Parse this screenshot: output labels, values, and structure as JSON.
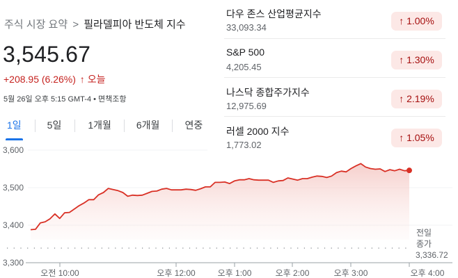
{
  "header": {
    "breadcrumb_parent": "주식 시장 요약",
    "breadcrumb_sep": ">",
    "breadcrumb_current": "필라델피아 반도체 지수",
    "price": "3,545.67",
    "change": "+208.95 (6.26%)",
    "change_arrow": "↑",
    "change_period": "오늘",
    "meta": "5월 26일 오후 5:15 GMT-4 • 면책조항"
  },
  "tabs": [
    {
      "label": "1일",
      "active": true
    },
    {
      "label": "5일",
      "active": false
    },
    {
      "label": "1개월",
      "active": false
    },
    {
      "label": "6개월",
      "active": false
    },
    {
      "label": "연중",
      "active": false
    }
  ],
  "markets": [
    {
      "name": "다우 존스 산업평균지수",
      "value": "33,093.34",
      "change": "↑ 1.00%"
    },
    {
      "name": "S&P 500",
      "value": "4,205.45",
      "change": "↑ 1.30%"
    },
    {
      "name": "나스닥 종합주가지수",
      "value": "12,975.69",
      "change": "↑ 2.19%"
    },
    {
      "name": "러셀 2000 지수",
      "value": "1,773.02",
      "change": "↑ 1.05%"
    }
  ],
  "colors": {
    "line": "#d93025",
    "fill_top": "#f4c7c3",
    "positive_text": "#c5221f",
    "badge_bg": "#fce8e6",
    "badge_text": "#a50e0e",
    "active_tab": "#1a73e8"
  },
  "prev_close": {
    "label_line1": "전일",
    "label_line2": "종가",
    "value": "3,336.72"
  },
  "chart_data": {
    "type": "line",
    "title": "필라델피아 반도체 지수 (1일)",
    "xlabel": "",
    "ylabel": "",
    "ylim": [
      3300,
      3600
    ],
    "yticks": [
      "3,300",
      "3,400",
      "3,500",
      "3,600"
    ],
    "xticks": [
      "오전 10:00",
      "오후 12:00",
      "오후 1:00",
      "오후 2:00",
      "오후 3:00",
      "오후 4:00"
    ],
    "grid": true,
    "reference_line": {
      "label": "전일 종가",
      "value": 3336.72
    },
    "series": [
      {
        "name": "필라델피아 반도체 지수",
        "x": [
          "09:30",
          "09:35",
          "09:40",
          "09:45",
          "09:50",
          "09:55",
          "10:00",
          "10:05",
          "10:10",
          "10:15",
          "10:20",
          "10:25",
          "10:30",
          "10:35",
          "10:40",
          "10:45",
          "10:50",
          "10:55",
          "11:00",
          "11:05",
          "11:10",
          "11:15",
          "11:20",
          "11:25",
          "11:30",
          "11:35",
          "11:40",
          "11:45",
          "11:50",
          "11:55",
          "12:00",
          "12:05",
          "12:10",
          "12:15",
          "12:20",
          "12:25",
          "12:30",
          "12:35",
          "12:40",
          "12:45",
          "12:50",
          "12:55",
          "13:00",
          "13:05",
          "13:10",
          "13:15",
          "13:20",
          "13:25",
          "13:30",
          "13:35",
          "13:40",
          "13:45",
          "13:50",
          "13:55",
          "14:00",
          "14:05",
          "14:10",
          "14:15",
          "14:20",
          "14:25",
          "14:30",
          "14:35",
          "14:40",
          "14:45",
          "14:50",
          "14:55",
          "15:00",
          "15:05",
          "15:10",
          "15:15",
          "15:20",
          "15:25",
          "15:30",
          "15:35",
          "15:40",
          "15:45",
          "15:50",
          "15:55",
          "16:00"
        ],
        "values": [
          3388,
          3389,
          3406,
          3409,
          3417,
          3430,
          3418,
          3433,
          3434,
          3443,
          3452,
          3459,
          3468,
          3468,
          3481,
          3487,
          3498,
          3495,
          3492,
          3487,
          3477,
          3480,
          3479,
          3480,
          3485,
          3490,
          3491,
          3496,
          3498,
          3494,
          3494,
          3494,
          3496,
          3495,
          3493,
          3497,
          3502,
          3502,
          3514,
          3514,
          3515,
          3511,
          3518,
          3521,
          3521,
          3524,
          3521,
          3520,
          3520,
          3520,
          3514,
          3518,
          3519,
          3526,
          3523,
          3520,
          3524,
          3524,
          3528,
          3531,
          3530,
          3527,
          3531,
          3540,
          3544,
          3542,
          3551,
          3558,
          3564,
          3555,
          3551,
          3549,
          3550,
          3543,
          3548,
          3545,
          3549,
          3545,
          3546
        ]
      }
    ]
  }
}
